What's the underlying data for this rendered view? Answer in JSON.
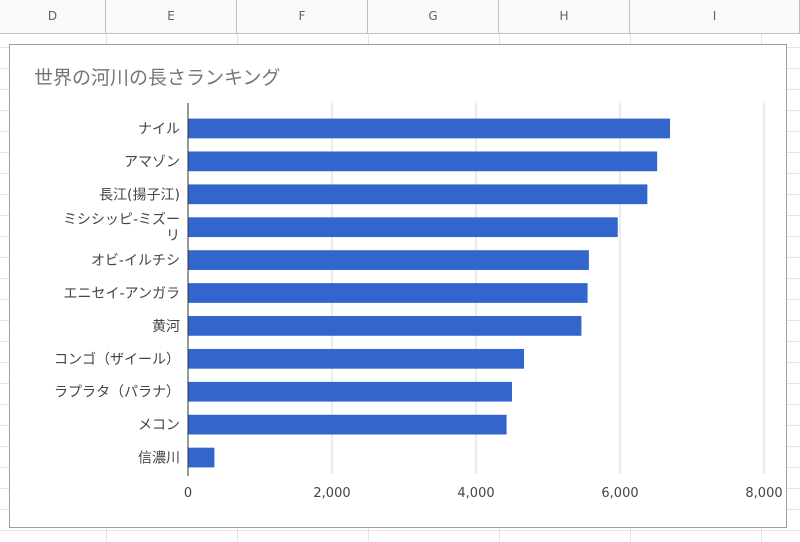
{
  "sheet": {
    "columns": [
      "D",
      "E",
      "F",
      "G",
      "H",
      "I"
    ]
  },
  "chart_data": {
    "type": "bar",
    "orientation": "horizontal",
    "title": "世界の河川の長さランキング",
    "categories": [
      [
        "ナイル"
      ],
      [
        "アマゾン"
      ],
      [
        "長江(揚子江)"
      ],
      [
        "ミシシッピ-ミズー",
        "リ"
      ],
      [
        "オビ-イルチシ"
      ],
      [
        "エニセイ-アンガラ"
      ],
      [
        "黄河"
      ],
      [
        "コンゴ（ザイール）"
      ],
      [
        "ラプラタ（パラナ）"
      ],
      [
        "メコン"
      ],
      [
        "信濃川"
      ]
    ],
    "values": [
      6695,
      6516,
      6380,
      5969,
      5568,
      5550,
      5464,
      4667,
      4500,
      4425,
      367
    ],
    "xlim": [
      0,
      8000
    ],
    "xticks": [
      0,
      2000,
      4000,
      6000,
      8000
    ],
    "xtick_labels": [
      "0",
      "2,000",
      "4,000",
      "6,000",
      "8,000"
    ],
    "bar_color": "#3366cc",
    "grid": true,
    "legend": "none"
  }
}
